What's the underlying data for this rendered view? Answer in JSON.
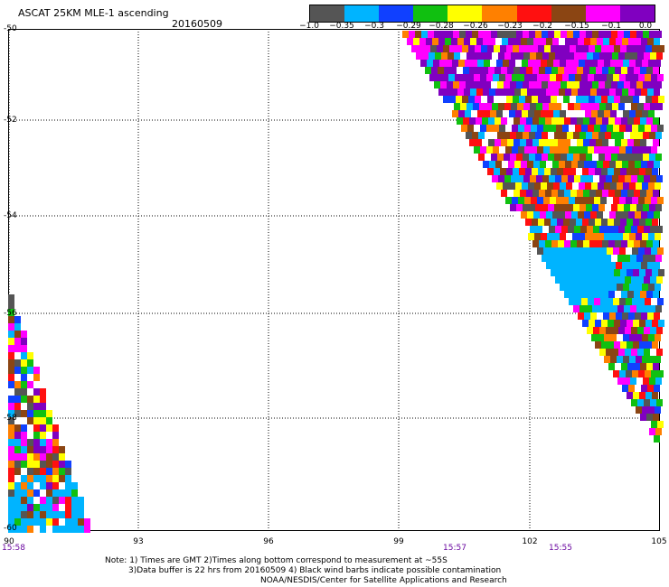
{
  "header": {
    "title": "ASCAT 25KM MLE-1 ascending",
    "date": "20160509"
  },
  "legend": {
    "colors": [
      "#555555",
      "#00b4ff",
      "#1040ff",
      "#10c010",
      "#ffff00",
      "#ff8000",
      "#ff1010",
      "#8b4513",
      "#ff00ff",
      "#8000c0"
    ],
    "labels": [
      "−1.0",
      "−0.35",
      "−0.3",
      "−0.29",
      "−0.28",
      "−0.26",
      "−0.23",
      "−0.2",
      "−0.15",
      "−0.1",
      "0.0"
    ]
  },
  "map": {
    "lat_labels": [
      "-50",
      "-52",
      "-54",
      "-56",
      "-58",
      "-60"
    ],
    "lon_labels": [
      "90",
      "93",
      "96",
      "99",
      "102",
      "105"
    ],
    "time_labels": [
      "15:58",
      "15:57",
      "15:55"
    ]
  },
  "notes": {
    "line1": "Note: 1) Times are GMT 2)Times along bottom correspond to measurement at ~55S",
    "line2": "3)Data buffer is 22 hrs from 20160509 4) Black wind barbs indicate possible contamination",
    "line3": "NOAA/NESDIS/Center for Satellite Applications and Research"
  }
}
